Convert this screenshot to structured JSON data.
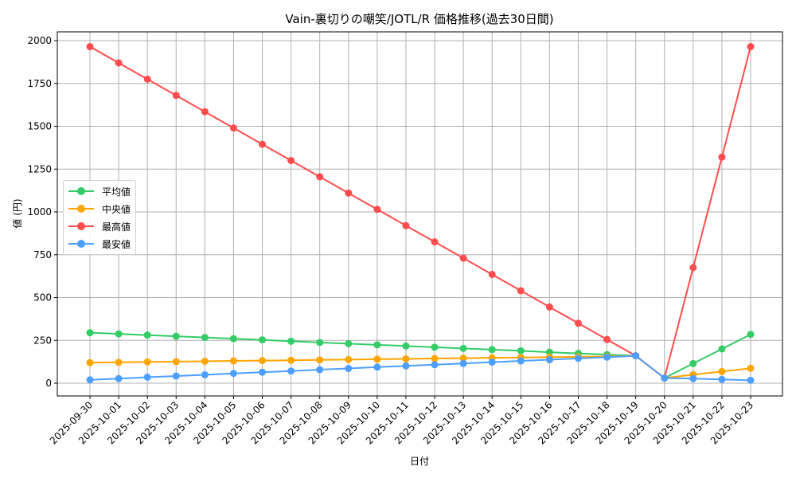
{
  "chart_data": {
    "type": "line",
    "title": "Vain-裏切りの嘲笑/JOTL/R 価格推移(過去30日間)",
    "xlabel": "日付",
    "ylabel": "値 (円)",
    "ylim": [
      -70,
      2070
    ],
    "yticks": [
      0,
      250,
      500,
      750,
      1000,
      1250,
      1500,
      1750,
      2000
    ],
    "grid": true,
    "legend_position": "center left",
    "x": [
      "2025-09-30",
      "2025-10-01",
      "2025-10-02",
      "2025-10-03",
      "2025-10-04",
      "2025-10-05",
      "2025-10-06",
      "2025-10-07",
      "2025-10-08",
      "2025-10-09",
      "2025-10-10",
      "2025-10-11",
      "2025-10-12",
      "2025-10-13",
      "2025-10-14",
      "2025-10-15",
      "2025-10-16",
      "2025-10-17",
      "2025-10-18",
      "2025-10-19",
      "2025-10-20",
      "2025-10-21",
      "2025-10-22",
      "2025-10-23"
    ],
    "series": [
      {
        "name": "平均値",
        "color": "#33cc66",
        "values": [
          295,
          288,
          281,
          274,
          267,
          260,
          253,
          245,
          238,
          231,
          224,
          217,
          210,
          203,
          196,
          189,
          181,
          174,
          167,
          160,
          30,
          115,
          200,
          285
        ]
      },
      {
        "name": "中央値",
        "color": "#ffa500",
        "values": [
          120,
          122,
          124,
          126,
          128,
          130,
          132,
          134,
          136,
          138,
          140,
          142,
          144,
          146,
          148,
          150,
          152,
          154,
          156,
          160,
          30,
          50,
          68,
          87
        ]
      },
      {
        "name": "最高値",
        "color": "#ff4d4d",
        "values": [
          1965,
          1870,
          1775,
          1680,
          1585,
          1490,
          1395,
          1300,
          1205,
          1110,
          1015,
          920,
          825,
          730,
          635,
          540,
          445,
          350,
          255,
          160,
          30,
          675,
          1320,
          1965
        ]
      },
      {
        "name": "最安値",
        "color": "#4d9fff",
        "values": [
          20,
          27,
          35,
          42,
          49,
          57,
          64,
          71,
          79,
          86,
          94,
          101,
          108,
          115,
          123,
          130,
          137,
          145,
          152,
          160,
          30,
          27,
          22,
          17
        ]
      }
    ]
  },
  "legend": {
    "items": [
      {
        "label": "平均値",
        "color": "#33cc66"
      },
      {
        "label": "中央値",
        "color": "#ffa500"
      },
      {
        "label": "最高値",
        "color": "#ff4d4d"
      },
      {
        "label": "最安値",
        "color": "#4d9fff"
      }
    ]
  }
}
